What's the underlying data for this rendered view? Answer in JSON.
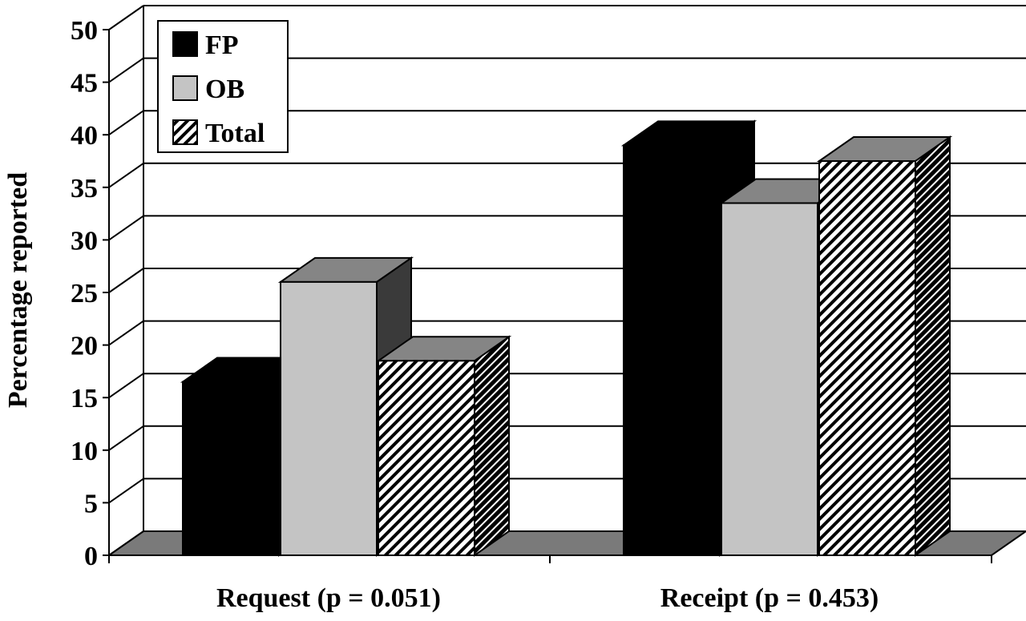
{
  "chart_data": {
    "type": "bar",
    "categories": [
      "Request (p = 0.051)",
      "Receipt (p = 0.453)"
    ],
    "series": [
      {
        "name": "FP",
        "values": [
          16.5,
          39
        ],
        "style": "black"
      },
      {
        "name": "OB",
        "values": [
          26,
          33.5
        ],
        "style": "lightgray"
      },
      {
        "name": "Total",
        "values": [
          18.5,
          37.5
        ],
        "style": "hatch"
      }
    ],
    "title": "",
    "xlabel": "",
    "ylabel": "Percentage reported",
    "ylim": [
      0,
      50
    ],
    "yticks": [
      0,
      5,
      10,
      15,
      20,
      25,
      30,
      35,
      40,
      45,
      50
    ],
    "grid": true,
    "three_d": true,
    "legend_position": "top-left",
    "colors": {
      "fp": "#000000",
      "ob": "#c4c4c4",
      "floor": "#7a7a7a",
      "side_dark": "#3a3a3a",
      "top_gray": "#858585",
      "grid": "#000000"
    }
  }
}
